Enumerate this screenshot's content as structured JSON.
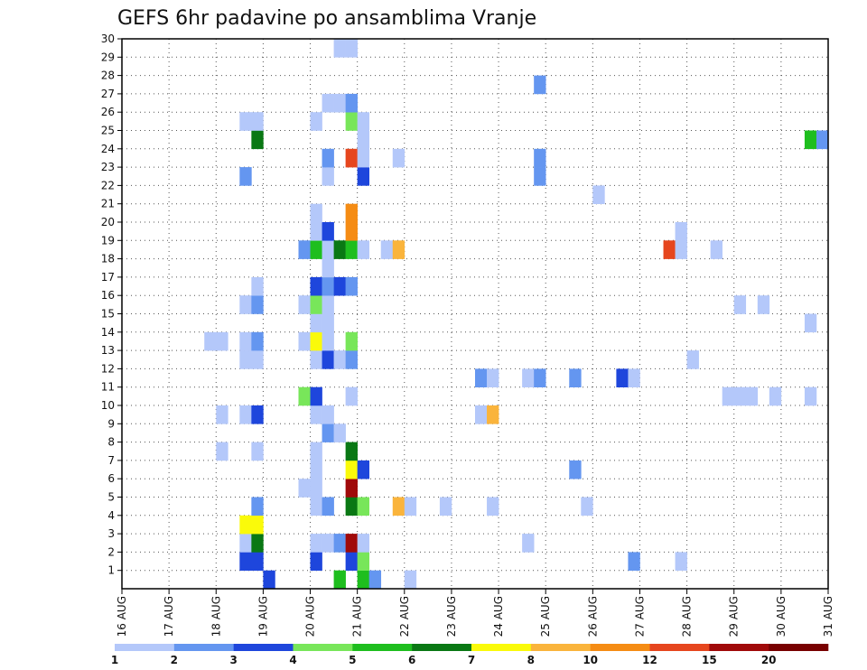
{
  "chart_data": {
    "type": "heatmap",
    "title": "GEFS 6hr padavine po ansamblima Vranje",
    "xlabel": "",
    "ylabel": "",
    "x_ticks": [
      "16 AUG",
      "17 AUG",
      "18 AUG",
      "19 AUG",
      "20 AUG",
      "21 AUG",
      "22 AUG",
      "23 AUG",
      "24 AUG",
      "25 AUG",
      "26 AUG",
      "27 AUG",
      "28 AUG",
      "29 AUG",
      "30 AUG",
      "31 AUG"
    ],
    "y_ticks": [
      "1",
      "2",
      "3",
      "4",
      "5",
      "6",
      "7",
      "8",
      "9",
      "10",
      "11",
      "12",
      "13",
      "14",
      "15",
      "16",
      "17",
      "18",
      "19",
      "20",
      "21",
      "22",
      "23",
      "24",
      "25",
      "26",
      "27",
      "28",
      "29",
      "30"
    ],
    "x_range_days": [
      16,
      31
    ],
    "y_range": [
      0,
      30
    ],
    "grid": true,
    "colorbar": {
      "labels": [
        "1",
        "2",
        "3",
        "4",
        "5",
        "6",
        "7",
        "8",
        "10",
        "12",
        "15",
        "20"
      ],
      "colors": [
        "#b4c8fa",
        "#6496f0",
        "#1e46dc",
        "#78e65a",
        "#1ebe1e",
        "#0a7814",
        "#fafa0a",
        "#fab43c",
        "#f58c14",
        "#e6461e",
        "#a00a0a",
        "#780000"
      ]
    },
    "cells": [
      {
        "x": 19.0,
        "y": 0,
        "c": 2
      },
      {
        "x": 20.5,
        "y": 0,
        "c": 4
      },
      {
        "x": 21.0,
        "y": 0,
        "c": 4
      },
      {
        "x": 21.25,
        "y": 0,
        "c": 1
      },
      {
        "x": 22.0,
        "y": 0,
        "c": 0
      },
      {
        "x": 18.5,
        "y": 1,
        "c": 2
      },
      {
        "x": 18.75,
        "y": 1,
        "c": 2
      },
      {
        "x": 20.0,
        "y": 1,
        "c": 2
      },
      {
        "x": 20.75,
        "y": 1,
        "c": 2
      },
      {
        "x": 21.0,
        "y": 1,
        "c": 3
      },
      {
        "x": 26.75,
        "y": 1,
        "c": 1
      },
      {
        "x": 27.75,
        "y": 1,
        "c": 0
      },
      {
        "x": 18.5,
        "y": 2,
        "c": 0
      },
      {
        "x": 18.75,
        "y": 2,
        "c": 5
      },
      {
        "x": 20.0,
        "y": 2,
        "c": 0
      },
      {
        "x": 20.25,
        "y": 2,
        "c": 0
      },
      {
        "x": 20.5,
        "y": 2,
        "c": 1
      },
      {
        "x": 20.75,
        "y": 2,
        "c": 10
      },
      {
        "x": 21.0,
        "y": 2,
        "c": 0
      },
      {
        "x": 24.5,
        "y": 2,
        "c": 0
      },
      {
        "x": 18.5,
        "y": 3,
        "c": 6
      },
      {
        "x": 18.75,
        "y": 3,
        "c": 6
      },
      {
        "x": 18.75,
        "y": 4,
        "c": 1
      },
      {
        "x": 20.0,
        "y": 4,
        "c": 0
      },
      {
        "x": 20.25,
        "y": 4,
        "c": 1
      },
      {
        "x": 20.75,
        "y": 4,
        "c": 5
      },
      {
        "x": 21.0,
        "y": 4,
        "c": 3
      },
      {
        "x": 21.75,
        "y": 4,
        "c": 7
      },
      {
        "x": 22.0,
        "y": 4,
        "c": 0
      },
      {
        "x": 22.75,
        "y": 4,
        "c": 0
      },
      {
        "x": 23.75,
        "y": 4,
        "c": 0
      },
      {
        "x": 25.75,
        "y": 4,
        "c": 0
      },
      {
        "x": 19.75,
        "y": 5,
        "c": 0
      },
      {
        "x": 20.0,
        "y": 5,
        "c": 0
      },
      {
        "x": 20.75,
        "y": 5,
        "c": 10
      },
      {
        "x": 20.0,
        "y": 6,
        "c": 0
      },
      {
        "x": 20.75,
        "y": 6,
        "c": 6
      },
      {
        "x": 21.0,
        "y": 6,
        "c": 2
      },
      {
        "x": 25.5,
        "y": 6,
        "c": 1
      },
      {
        "x": 18.0,
        "y": 7,
        "c": 0
      },
      {
        "x": 18.75,
        "y": 7,
        "c": 0
      },
      {
        "x": 20.0,
        "y": 7,
        "c": 0
      },
      {
        "x": 20.75,
        "y": 7,
        "c": 5
      },
      {
        "x": 20.25,
        "y": 8,
        "c": 1
      },
      {
        "x": 20.5,
        "y": 8,
        "c": 0
      },
      {
        "x": 18.0,
        "y": 9,
        "c": 0
      },
      {
        "x": 18.5,
        "y": 9,
        "c": 0
      },
      {
        "x": 18.75,
        "y": 9,
        "c": 2
      },
      {
        "x": 20.0,
        "y": 9,
        "c": 0
      },
      {
        "x": 20.25,
        "y": 9,
        "c": 0
      },
      {
        "x": 23.5,
        "y": 9,
        "c": 0
      },
      {
        "x": 23.75,
        "y": 9,
        "c": 7
      },
      {
        "x": 19.75,
        "y": 10,
        "c": 3
      },
      {
        "x": 20.0,
        "y": 10,
        "c": 2
      },
      {
        "x": 20.75,
        "y": 10,
        "c": 0
      },
      {
        "x": 28.75,
        "y": 10,
        "c": 0
      },
      {
        "x": 29.0,
        "y": 10,
        "c": 0
      },
      {
        "x": 29.25,
        "y": 10,
        "c": 0
      },
      {
        "x": 29.75,
        "y": 10,
        "c": 0
      },
      {
        "x": 30.5,
        "y": 10,
        "c": 0
      },
      {
        "x": 23.5,
        "y": 11,
        "c": 1
      },
      {
        "x": 23.75,
        "y": 11,
        "c": 0
      },
      {
        "x": 24.5,
        "y": 11,
        "c": 0
      },
      {
        "x": 24.75,
        "y": 11,
        "c": 1
      },
      {
        "x": 25.5,
        "y": 11,
        "c": 1
      },
      {
        "x": 26.5,
        "y": 11,
        "c": 2
      },
      {
        "x": 26.75,
        "y": 11,
        "c": 0
      },
      {
        "x": 18.5,
        "y": 12,
        "c": 0
      },
      {
        "x": 18.75,
        "y": 12,
        "c": 0
      },
      {
        "x": 20.0,
        "y": 12,
        "c": 0
      },
      {
        "x": 20.25,
        "y": 12,
        "c": 2
      },
      {
        "x": 20.5,
        "y": 12,
        "c": 0
      },
      {
        "x": 20.75,
        "y": 12,
        "c": 1
      },
      {
        "x": 28.0,
        "y": 12,
        "c": 0
      },
      {
        "x": 17.75,
        "y": 13,
        "c": 0
      },
      {
        "x": 18.0,
        "y": 13,
        "c": 0
      },
      {
        "x": 18.5,
        "y": 13,
        "c": 0
      },
      {
        "x": 18.75,
        "y": 13,
        "c": 1
      },
      {
        "x": 19.75,
        "y": 13,
        "c": 0
      },
      {
        "x": 20.0,
        "y": 13,
        "c": 6
      },
      {
        "x": 20.25,
        "y": 13,
        "c": 0
      },
      {
        "x": 20.75,
        "y": 13,
        "c": 3
      },
      {
        "x": 20.0,
        "y": 14,
        "c": 0
      },
      {
        "x": 20.25,
        "y": 14,
        "c": 0
      },
      {
        "x": 30.5,
        "y": 14,
        "c": 0
      },
      {
        "x": 18.5,
        "y": 15,
        "c": 0
      },
      {
        "x": 18.75,
        "y": 15,
        "c": 1
      },
      {
        "x": 19.75,
        "y": 15,
        "c": 0
      },
      {
        "x": 20.0,
        "y": 15,
        "c": 3
      },
      {
        "x": 20.25,
        "y": 15,
        "c": 0
      },
      {
        "x": 29.0,
        "y": 15,
        "c": 0
      },
      {
        "x": 29.5,
        "y": 15,
        "c": 0
      },
      {
        "x": 18.75,
        "y": 16,
        "c": 0
      },
      {
        "x": 20.0,
        "y": 16,
        "c": 2
      },
      {
        "x": 20.25,
        "y": 16,
        "c": 1
      },
      {
        "x": 20.5,
        "y": 16,
        "c": 2
      },
      {
        "x": 20.75,
        "y": 16,
        "c": 1
      },
      {
        "x": 20.25,
        "y": 17,
        "c": 0
      },
      {
        "x": 19.75,
        "y": 18,
        "c": 1
      },
      {
        "x": 20.0,
        "y": 18,
        "c": 4
      },
      {
        "x": 20.25,
        "y": 18,
        "c": 0
      },
      {
        "x": 20.5,
        "y": 18,
        "c": 5
      },
      {
        "x": 20.75,
        "y": 18,
        "c": 4
      },
      {
        "x": 21.0,
        "y": 18,
        "c": 0
      },
      {
        "x": 21.5,
        "y": 18,
        "c": 0
      },
      {
        "x": 21.75,
        "y": 18,
        "c": 7
      },
      {
        "x": 27.5,
        "y": 18,
        "c": 9
      },
      {
        "x": 27.75,
        "y": 18,
        "c": 0
      },
      {
        "x": 28.5,
        "y": 18,
        "c": 0
      },
      {
        "x": 20.0,
        "y": 19,
        "c": 0
      },
      {
        "x": 20.25,
        "y": 19,
        "c": 2
      },
      {
        "x": 20.75,
        "y": 19,
        "c": 8
      },
      {
        "x": 27.75,
        "y": 19,
        "c": 0
      },
      {
        "x": 20.0,
        "y": 20,
        "c": 0
      },
      {
        "x": 20.75,
        "y": 20,
        "c": 8
      },
      {
        "x": 26.0,
        "y": 21,
        "c": 0
      },
      {
        "x": 18.5,
        "y": 22,
        "c": 1
      },
      {
        "x": 20.25,
        "y": 22,
        "c": 0
      },
      {
        "x": 21.0,
        "y": 22,
        "c": 2
      },
      {
        "x": 24.75,
        "y": 22,
        "c": 1
      },
      {
        "x": 20.25,
        "y": 23,
        "c": 1
      },
      {
        "x": 20.75,
        "y": 23,
        "c": 9
      },
      {
        "x": 21.0,
        "y": 23,
        "c": 0
      },
      {
        "x": 21.75,
        "y": 23,
        "c": 0
      },
      {
        "x": 24.75,
        "y": 23,
        "c": 1
      },
      {
        "x": 18.75,
        "y": 24,
        "c": 5
      },
      {
        "x": 21.0,
        "y": 24,
        "c": 0
      },
      {
        "x": 30.5,
        "y": 24,
        "c": 4
      },
      {
        "x": 30.75,
        "y": 24,
        "c": 1
      },
      {
        "x": 18.5,
        "y": 25,
        "c": 0
      },
      {
        "x": 18.75,
        "y": 25,
        "c": 0
      },
      {
        "x": 20.0,
        "y": 25,
        "c": 0
      },
      {
        "x": 20.75,
        "y": 25,
        "c": 3
      },
      {
        "x": 21.0,
        "y": 25,
        "c": 0
      },
      {
        "x": 20.25,
        "y": 26,
        "c": 0
      },
      {
        "x": 20.5,
        "y": 26,
        "c": 0
      },
      {
        "x": 20.75,
        "y": 26,
        "c": 1
      },
      {
        "x": 24.75,
        "y": 27,
        "c": 1
      },
      {
        "x": 20.5,
        "y": 29,
        "c": 0
      },
      {
        "x": 20.75,
        "y": 29,
        "c": 0
      }
    ]
  }
}
